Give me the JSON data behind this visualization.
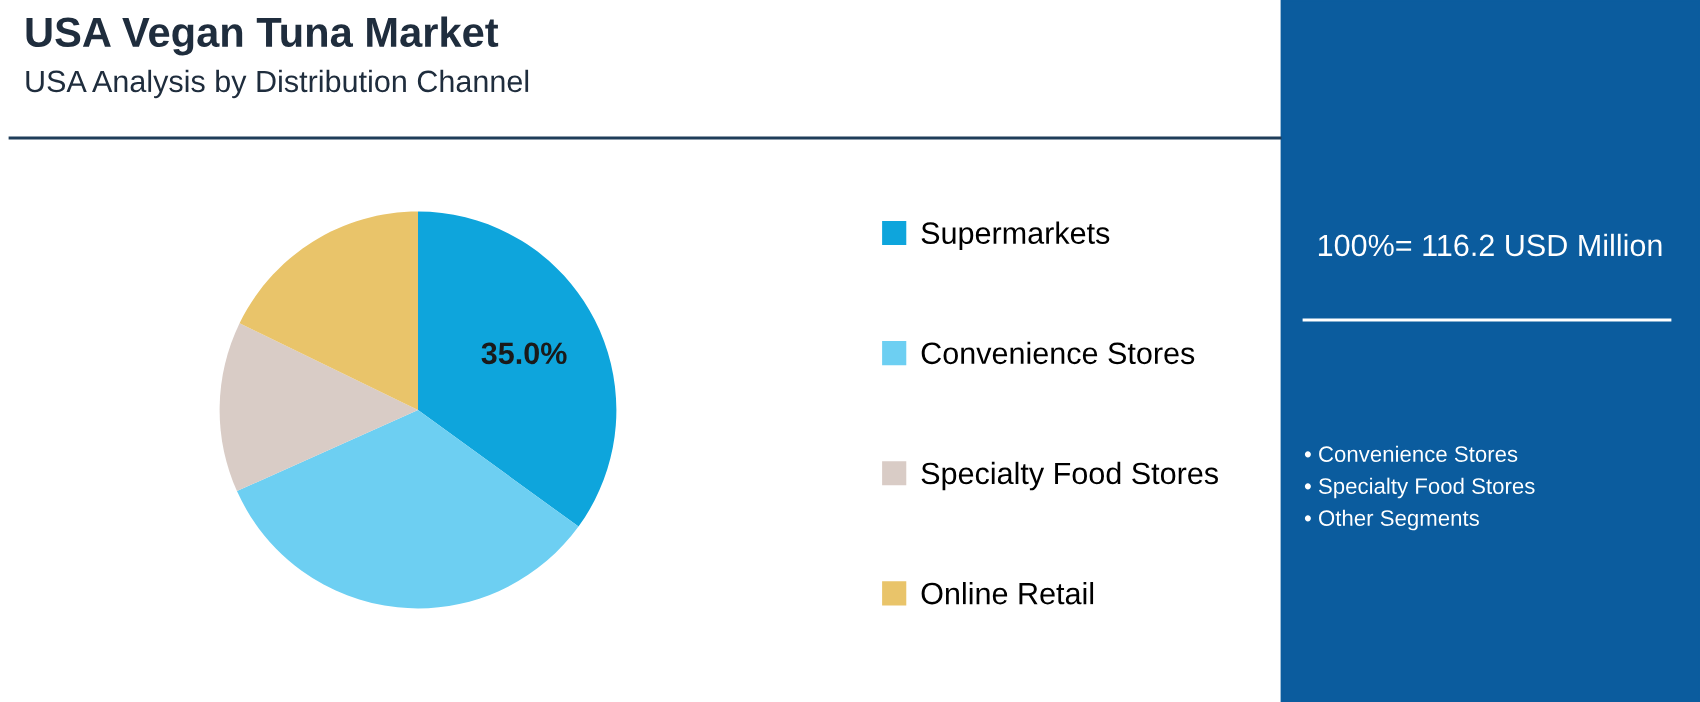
{
  "chart_data": {
    "type": "pie",
    "title": "USA Vegan Tuna Market",
    "subtitle": "USA Analysis by Distribution Channel",
    "categories": [
      "Supermarkets",
      "Convenience Stores",
      "Specialty Food Stores",
      "Online Retail"
    ],
    "values": [
      35.0,
      33.3,
      13.9,
      17.8
    ],
    "colors": [
      "#0ea5dc",
      "#6dcff2",
      "#d9ccc6",
      "#e9c46a"
    ],
    "value_labels": [
      "35.0%",
      null,
      null,
      null
    ],
    "legend": "right",
    "annotations": [
      "100%= 116.2 USD Million",
      "• Convenience Stores",
      "• Specialty Food Stores",
      "• Other Segments"
    ]
  }
}
